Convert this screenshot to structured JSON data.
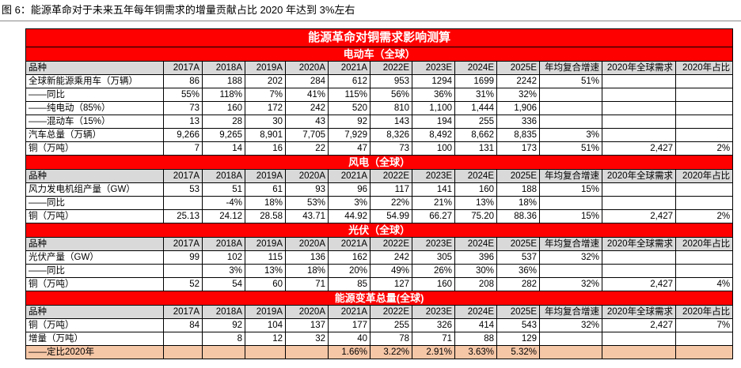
{
  "caption": "图 6：能源革命对于未来五年每年铜需求的增量贡献占比 2020 年达到 3%左右",
  "table": {
    "title": "能源革命对铜需求影响测算",
    "header": [
      "品种",
      "2017A",
      "2018A",
      "2019A",
      "2020A",
      "2021A",
      "2022E",
      "2023E",
      "2024E",
      "2025E",
      "年均复合增速",
      "2020年全球需求",
      "2020年占比"
    ],
    "sections": [
      {
        "title": "电动车（全球）",
        "header_row": false,
        "rows": [
          {
            "cells": [
              "品种",
              "2017A",
              "2018A",
              "2019A",
              "2020A",
              "2021A",
              "2022E",
              "2023E",
              "2024E",
              "2025E",
              "年均复合增速",
              "2020年全球需求",
              "2020年占比"
            ],
            "header": true
          },
          {
            "cells": [
              "全球新能源乘用车（万辆）",
              "86",
              "188",
              "202",
              "284",
              "612",
              "953",
              "1294",
              "1699",
              "2242",
              "51%",
              "",
              ""
            ]
          },
          {
            "cells": [
              "——同比",
              "55%",
              "118%",
              "7%",
              "41%",
              "115%",
              "56%",
              "36%",
              "31%",
              "32%",
              "",
              "",
              ""
            ]
          },
          {
            "cells": [
              "——纯电动（85%）",
              "73",
              "160",
              "172",
              "242",
              "520",
              "810",
              "1,100",
              "1,444",
              "1,906",
              "",
              "",
              ""
            ]
          },
          {
            "cells": [
              "——混动车（15%）",
              "13",
              "28",
              "30",
              "43",
              "92",
              "143",
              "194",
              "255",
              "336",
              "",
              "",
              ""
            ]
          },
          {
            "cells": [
              "汽车总量（万辆）",
              "9,266",
              "9,265",
              "8,901",
              "7,705",
              "7,929",
              "8,326",
              "8,492",
              "8,662",
              "8,835",
              "3%",
              "",
              ""
            ]
          },
          {
            "cells": [
              "铜（万吨）",
              "7",
              "14",
              "16",
              "22",
              "47",
              "73",
              "100",
              "131",
              "173",
              "51%",
              "2,427",
              "2%"
            ]
          }
        ]
      },
      {
        "title": "风电（全球）",
        "rows": [
          {
            "cells": [
              "品种",
              "2017A",
              "2018A",
              "2019A",
              "2020A",
              "2021A",
              "2022E",
              "2023E",
              "2024E",
              "2025E",
              "年均复合增速",
              "2020年全球需求",
              "2020年占比"
            ],
            "header": true
          },
          {
            "cells": [
              "风力发电机组产量（GW）",
              "53",
              "51",
              "61",
              "93",
              "96",
              "117",
              "141",
              "160",
              "188",
              "15%",
              "",
              ""
            ]
          },
          {
            "cells": [
              "——同比",
              "",
              "-4%",
              "18%",
              "53%",
              "3%",
              "22%",
              "21%",
              "13%",
              "18%",
              "",
              "",
              ""
            ]
          },
          {
            "cells": [
              "铜（万吨）",
              "25.13",
              "24.12",
              "28.58",
              "43.71",
              "44.92",
              "54.99",
              "66.27",
              "75.20",
              "88.36",
              "15%",
              "2,427",
              "2%"
            ]
          }
        ]
      },
      {
        "title": "光伏（全球）",
        "rows": [
          {
            "cells": [
              "品种",
              "2017A",
              "2018A",
              "2019A",
              "2020A",
              "2021A",
              "2022E",
              "2023E",
              "2024E",
              "2025E",
              "年均复合增速",
              "2020年全球需求",
              "2020年占比"
            ],
            "header": true
          },
          {
            "cells": [
              "光伏产量（GW）",
              "99",
              "102",
              "115",
              "136",
              "162",
              "242",
              "305",
              "396",
              "537",
              "32%",
              "",
              ""
            ]
          },
          {
            "cells": [
              "——同比",
              "",
              "3%",
              "13%",
              "18%",
              "20%",
              "49%",
              "26%",
              "30%",
              "36%",
              "",
              "",
              ""
            ]
          },
          {
            "cells": [
              "铜（万吨）",
              "52",
              "54",
              "60",
              "71",
              "85",
              "127",
              "160",
              "208",
              "282",
              "32%",
              "2,427",
              "4%"
            ]
          }
        ]
      },
      {
        "title": "能源变革总量(全球)",
        "rows": [
          {
            "cells": [
              "品种",
              "2017A",
              "2018A",
              "2019A",
              "2020A",
              "2021A",
              "2022E",
              "2023E",
              "2024E",
              "2025E",
              "年均复合增速",
              "2020年全球需求",
              "2020年占比"
            ],
            "header": true
          },
          {
            "cells": [
              "铜（万吨）",
              "84",
              "92",
              "104",
              "137",
              "177",
              "255",
              "326",
              "414",
              "543",
              "32%",
              "2,427",
              "7%"
            ]
          },
          {
            "cells": [
              "增量（万吨）",
              "",
              "8",
              "12",
              "32",
              "40",
              "78",
              "71",
              "88",
              "129",
              "",
              "",
              ""
            ]
          },
          {
            "cells": [
              "——定比2020年",
              "",
              "",
              "",
              "",
              "1.66%",
              "3.22%",
              "2.91%",
              "3.63%",
              "5.32%",
              "",
              "",
              ""
            ],
            "highlight": true
          }
        ]
      }
    ]
  }
}
